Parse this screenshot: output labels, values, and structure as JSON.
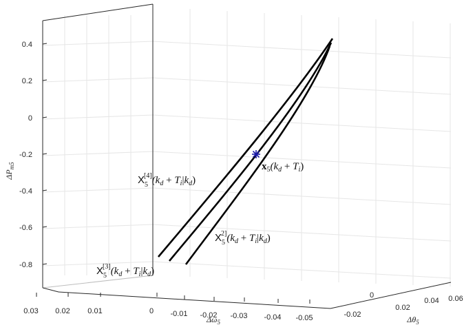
{
  "chart_data": {
    "type": "line",
    "title": "",
    "axes": {
      "x": {
        "label": "Δω₅",
        "ticks": [
          "0.03",
          "0.02",
          "0.01",
          "0",
          "-0.01",
          "-0.02",
          "-0.03",
          "-0.04",
          "-0.05"
        ]
      },
      "y": {
        "label": "Δθ₅",
        "ticks": [
          "-0.02",
          "0",
          "0.02",
          "0.04",
          "0.06"
        ]
      },
      "z": {
        "label": "ΔP_m5",
        "ticks": [
          "0.4",
          "0.2",
          "0",
          "-0.2",
          "-0.4",
          "-0.6",
          "-0.8"
        ],
        "range": [
          -0.9,
          0.5
        ]
      }
    },
    "grid": true,
    "series": [
      {
        "name": "X₅^[4](k_d + T_i | k_d)"
      },
      {
        "name": "X₅^[3](k_d + T_i | k_d)"
      },
      {
        "name": "X₅^[2](k_d + T_i | k_d)"
      }
    ],
    "point": {
      "label": "x₅(k_d + T_i)",
      "marker": "*",
      "color": "#1a1aa8"
    },
    "annotations": [
      {
        "prefix": "X",
        "sub": "5",
        "sup": "[4]",
        "tail": "(k_d + T_i|k_d)"
      },
      {
        "prefix": "X",
        "sub": "5",
        "sup": "2]",
        "tail": "(k_d + T_i|k_d)"
      },
      {
        "prefix": "X",
        "sub": "5",
        "sup": "[3]",
        "tail": "(k_d + T_i|k_d)"
      },
      {
        "prefix": "x",
        "sub": "5",
        "sup": "",
        "tail": "(k_d + T_i)"
      }
    ]
  }
}
